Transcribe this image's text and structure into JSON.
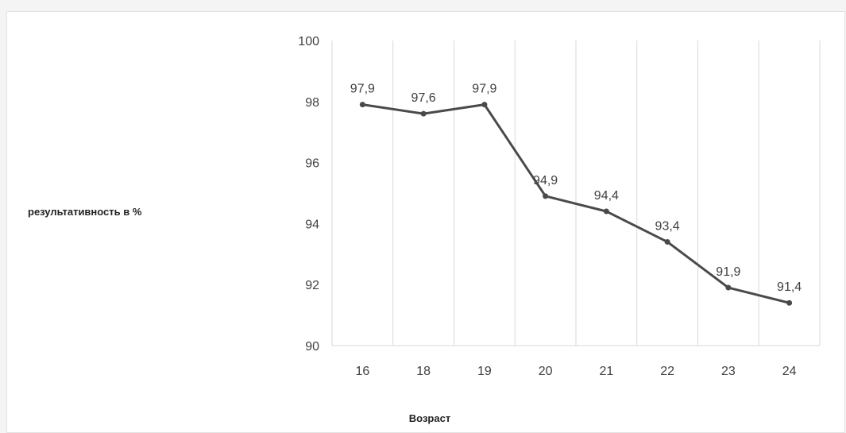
{
  "chart_data": {
    "type": "line",
    "title": "",
    "xlabel": "Возраст",
    "ylabel": "результативность в %",
    "categories": [
      "16",
      "18",
      "19",
      "20",
      "21",
      "22",
      "23",
      "24"
    ],
    "series": [
      {
        "values": [
          97.9,
          97.6,
          97.9,
          94.9,
          94.4,
          93.4,
          91.9,
          91.4
        ],
        "data_labels": [
          "97,9",
          "97,6",
          "97,9",
          "94,9",
          "94,4",
          "93,4",
          "91,9",
          "91,4"
        ]
      }
    ],
    "y_ticks": [
      "90",
      "92",
      "94",
      "96",
      "98",
      "100"
    ],
    "ylim": [
      90,
      100
    ],
    "grid": "vertical",
    "legend": "none",
    "colors": {
      "line": "#4a4a4a",
      "grid": "#d9d9d9",
      "text": "#404040"
    }
  }
}
